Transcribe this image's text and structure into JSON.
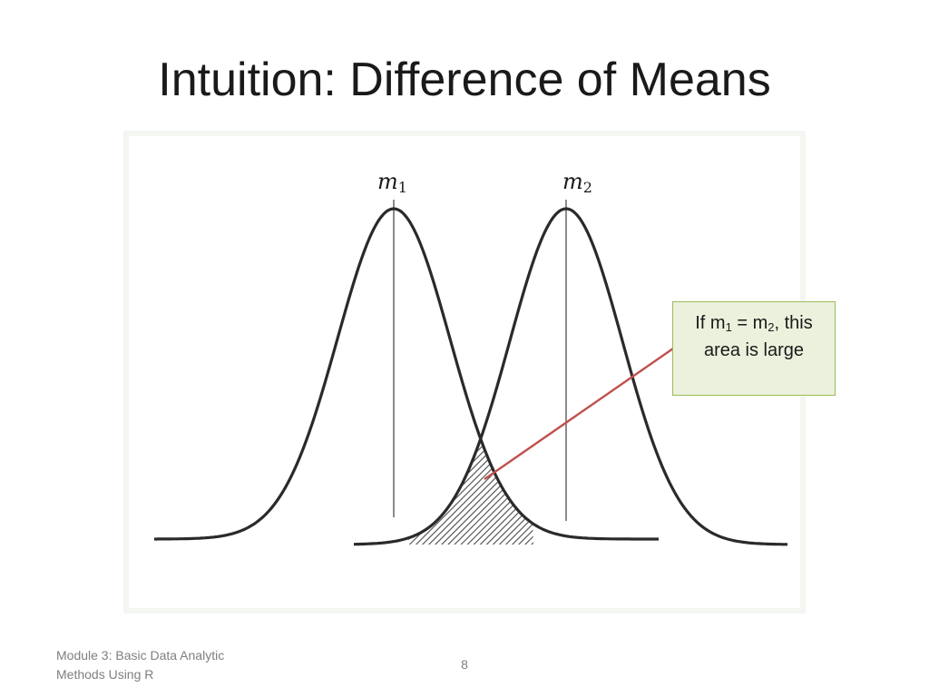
{
  "slide": {
    "title": "Intuition: Difference of Means"
  },
  "figure": {
    "labels": {
      "m1": "m1",
      "m2": "m2"
    },
    "colors": {
      "curve": "#2a2a2a",
      "mean_line": "#6e6e6e",
      "hatch": "#4a4a4a",
      "leader_line": "#c0504d"
    }
  },
  "callout": {
    "prefix": "If m",
    "sub1": "1",
    "mid": " = m",
    "sub2": "2",
    "suffix": ", this",
    "line2": "area is large",
    "colors": {
      "fill": "#ebf1dd",
      "border": "#9bbb59"
    }
  },
  "footer": {
    "module_line1": "Module 3: Basic Data Analytic",
    "module_line2": "Methods Using R",
    "page_number": "8"
  }
}
